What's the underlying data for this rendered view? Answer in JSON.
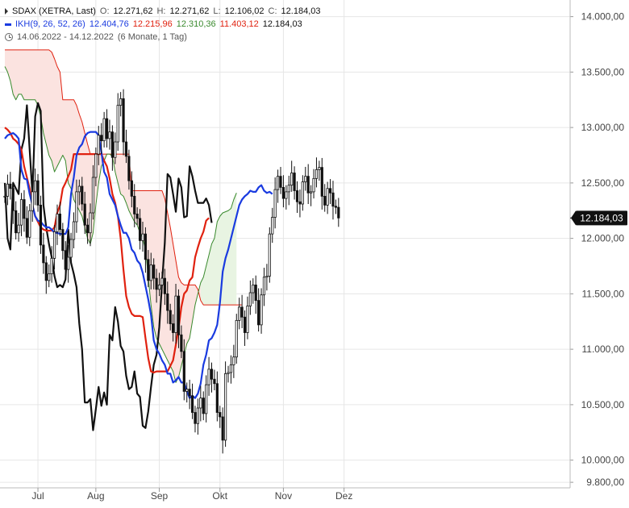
{
  "legend": {
    "row1": {
      "symbol": "SDAX (XETRA, Last)",
      "open_label": "O:",
      "open": "12.271,62",
      "high_label": "H:",
      "high": "12.271,62",
      "low_label": "L:",
      "low": "12.106,02",
      "close_label": "C:",
      "close": "12.184,03"
    },
    "row2": {
      "indicator": "IKH(9, 26, 52, 26)",
      "v1": "12.404,76",
      "v2": "12.215,96",
      "v3": "12.310,36",
      "v4": "11.403,12",
      "v5": "12.184,03"
    },
    "row3": {
      "range": "14.06.2022 - 14.12.2022",
      "period": "(6 Monate, 1 Tag)"
    }
  },
  "colors": {
    "price": "#111111",
    "tenkan": "#1a3be0",
    "kijun": "#e0210f",
    "span_a": "#3a8a2e",
    "span_b": "#e0210f",
    "chikou": "#111111",
    "cloud_up": "#e8f4e2",
    "cloud_down": "#fbe3e0",
    "grid": "#e6e6e6",
    "last_price_bg": "#111111",
    "last_price_fg": "#ffffff"
  },
  "chart_data": {
    "type": "line",
    "title": "SDAX (XETRA, Last)",
    "xlabel": "",
    "ylabel": "",
    "ylim": [
      9750,
      14150
    ],
    "y_ticks": [
      14000,
      13500,
      13000,
      12500,
      12000,
      11500,
      11000,
      10500,
      10000,
      9800
    ],
    "y_tick_labels": [
      "14.000,00",
      "13.500,00",
      "13.000,00",
      "12.500,00",
      "12.000,00",
      "11.500,00",
      "11.000,00",
      "10.500,00",
      "10.000,00",
      "9.800,00"
    ],
    "x_months": [
      "Jul",
      "Aug",
      "Sep",
      "Okt",
      "Nov",
      "Dez"
    ],
    "x_month_start_index": [
      12,
      33,
      56,
      78,
      101,
      123
    ],
    "last_price": 12184.03,
    "last_price_label": "12.184,03",
    "grid": true,
    "series": [
      {
        "key": "price",
        "name": "SDAX",
        "start": 0,
        "values": [
          12380,
          12490,
          12450,
          12250,
          12050,
          12120,
          12350,
          12180,
          12010,
          12250,
          12420,
          12520,
          12300,
          11940,
          11780,
          11620,
          11680,
          11820,
          12060,
          12220,
          12080,
          11890,
          11720,
          11830,
          11990,
          12150,
          12420,
          12470,
          12310,
          12120,
          12050,
          12230,
          12550,
          12760,
          12930,
          12880,
          13080,
          12900,
          12960,
          12730,
          12870,
          13200,
          13260,
          12870,
          12740,
          12520,
          12380,
          12220,
          12180,
          11980,
          12040,
          11810,
          11620,
          11760,
          11640,
          11540,
          11580,
          11640,
          11500,
          11350,
          11230,
          11150,
          11480,
          11130,
          10980,
          10620,
          10640,
          10580,
          10430,
          10330,
          10470,
          10560,
          10420,
          10680,
          10820,
          10730,
          10690,
          10430,
          10390,
          10180,
          10780,
          10790,
          10860,
          10930,
          11260,
          11380,
          11290,
          11150,
          11390,
          11510,
          11580,
          11440,
          11220,
          11490,
          11650,
          11660,
          12040,
          12190,
          12440,
          12560,
          12460,
          12360,
          12420,
          12480,
          12590,
          12430,
          12330,
          12310,
          12510,
          12560,
          12410,
          12420,
          12540,
          12620,
          12640,
          12380,
          12300,
          12450,
          12410,
          12290,
          12280,
          12184.03
        ]
      },
      {
        "key": "tenkan",
        "name": "",
        "start": 0,
        "values": [
          12900,
          12930,
          12940,
          12950,
          12930,
          12900,
          12620,
          12540,
          12530,
          12400,
          12300,
          12200,
          12160,
          12150,
          12120,
          12100,
          12100,
          12080,
          12050,
          12050,
          12040,
          12040,
          12040,
          12100,
          12400,
          12550,
          12750,
          12820,
          12850,
          12920,
          12950,
          12960,
          12960,
          12960,
          12930,
          12780,
          12600,
          12550,
          12400,
          12350,
          12300,
          12200,
          12120,
          12050,
          12050,
          12000,
          11900,
          11870,
          11800,
          11770,
          11690,
          11570,
          11450,
          11310,
          11080,
          11000,
          10960,
          10900,
          10860,
          10780,
          10780,
          10700,
          10720,
          10750,
          10700,
          10700,
          10620,
          10560,
          10580,
          10560,
          10600,
          10690,
          10860,
          10950,
          11080,
          11100,
          11150,
          11220,
          11420,
          11700,
          11820,
          11900,
          12000,
          12100,
          12200,
          12300,
          12350,
          12380,
          12400,
          12430,
          12420,
          12420,
          12460,
          12480,
          12430,
          12410,
          12420,
          12400
        ]
      },
      {
        "key": "kijun",
        "name": "",
        "start": 0,
        "values": [
          13000,
          12980,
          12950,
          12900,
          12880,
          12850,
          12800,
          12650,
          12550,
          12450,
          12300,
          12200,
          12150,
          12100,
          12080,
          12070,
          12070,
          12070,
          12100,
          12230,
          12300,
          12450,
          12500,
          12560,
          12620,
          12760,
          12760,
          12760,
          12760,
          12760,
          12760,
          12760,
          12760,
          12760,
          12760,
          12760,
          12700,
          12650,
          12540,
          12400,
          12320,
          12200,
          12000,
          11720,
          11480,
          11380,
          11320,
          11300,
          11300,
          11300,
          11290,
          11100,
          10920,
          10800,
          10790,
          10800,
          10800,
          10800,
          10800,
          10800,
          10850,
          10900,
          11040,
          11190,
          11380,
          11500,
          11530,
          11620,
          11650,
          11830,
          11920,
          12000,
          12060,
          12160,
          12184
        ]
      },
      {
        "key": "span_a",
        "name": "",
        "start": 0,
        "values": [
          13550,
          13500,
          13420,
          13300,
          13250,
          13300,
          13300,
          13250,
          13250,
          13250,
          13250,
          13250,
          13200,
          13100,
          12950,
          12850,
          12750,
          12700,
          12600,
          12650,
          12700,
          12750,
          12700,
          12500,
          12450,
          12350,
          12300,
          12250,
          12200,
          12100,
          12000,
          11950,
          12050,
          12300,
          12500,
          12650,
          12700,
          12760,
          12760,
          12740,
          12600,
          12500,
          12400,
          12380,
          12320,
          12250,
          12200,
          12150,
          12120,
          12050,
          12000,
          11900,
          11650,
          11400,
          11200,
          11100,
          11050,
          11000,
          10950,
          10900,
          10850,
          10800,
          10700,
          10750,
          10850,
          10950,
          11050,
          11100,
          11250,
          11400,
          11500,
          11600,
          11650,
          11750,
          11850,
          11950,
          12000,
          12150,
          12200,
          12230,
          12240,
          12250,
          12270,
          12350,
          12410
        ]
      },
      {
        "key": "span_b",
        "name": "",
        "start": 0,
        "values": [
          13700,
          13700,
          13700,
          13700,
          13700,
          13700,
          13700,
          13700,
          13700,
          13700,
          13700,
          13700,
          13700,
          13700,
          13700,
          13700,
          13700,
          13680,
          13620,
          13550,
          13500,
          13250,
          13250,
          13250,
          13250,
          13250,
          13200,
          13120,
          13050,
          12950,
          12850,
          12760,
          12760,
          12760,
          12760,
          12760,
          12760,
          12760,
          12760,
          12760,
          12760,
          12760,
          12760,
          12760,
          12760,
          12760,
          12430,
          12430,
          12430,
          12430,
          12430,
          12430,
          12430,
          12430,
          12430,
          12430,
          12430,
          12430,
          12360,
          12230,
          12100,
          11950,
          11800,
          11650,
          11600,
          11580,
          11580,
          11580,
          11580,
          11580,
          11540,
          11440,
          11400,
          11400,
          11400,
          11400,
          11400,
          11400,
          11400,
          11400,
          11400,
          11400,
          11400,
          11400,
          11400,
          11400,
          11400
        ]
      },
      {
        "key": "chikou",
        "name": "",
        "start": 0,
        "values": [
          12500,
          12000,
          11900,
          12500,
          12450,
          12400,
          12800,
          12900,
          13200,
          12800,
          12400,
          13100,
          13220,
          13150,
          12300,
          12100,
          11950,
          11830,
          11660,
          11560,
          11580,
          11560,
          11630,
          12080,
          11780,
          11680,
          11560,
          11230,
          11000,
          10520,
          10520,
          10550,
          10270,
          10460,
          10660,
          10490,
          10610,
          10500,
          11130,
          11080,
          11380,
          11250,
          11030,
          10980,
          10760,
          10640,
          10660,
          10800,
          10600,
          10570,
          10310,
          10290,
          10440,
          10660,
          10860,
          10950,
          11200,
          11600,
          11960,
          12580,
          12550,
          12400,
          12240,
          12540,
          12460,
          12190,
          12200,
          12650,
          12560,
          12430,
          12320,
          12320,
          12320,
          12360,
          12300,
          12140
        ]
      }
    ]
  }
}
